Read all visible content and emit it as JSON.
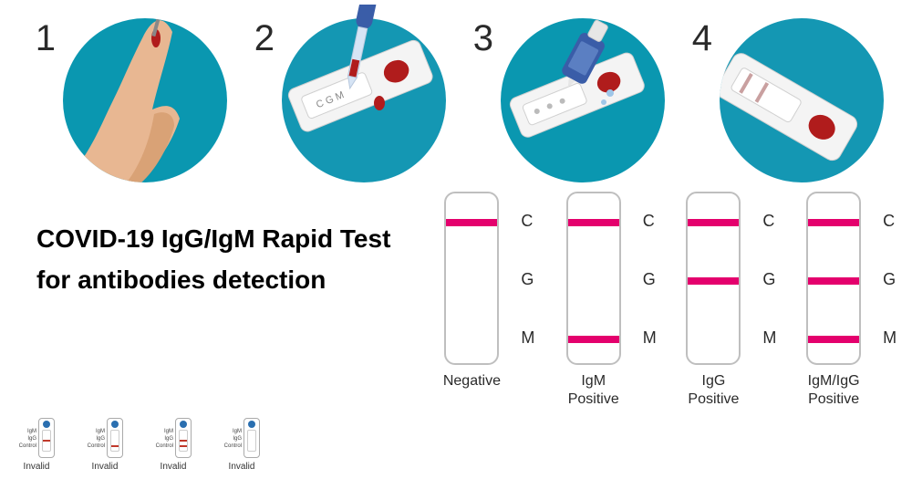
{
  "colors": {
    "circle_bg": "#0a97b0",
    "circle_bg_alt": "#1497b3",
    "band": "#e4006d",
    "step_text": "#2a2a2a",
    "title_text": "#000000",
    "strip_border": "#bfbfbf",
    "skin": "#e8b792",
    "skin_dark": "#d9a276",
    "blood": "#b01c1c",
    "pipette_fill": "#d6e4f5",
    "bottle": "#3a5da8",
    "cap": "#e6e6e6",
    "cassette": "#f4f4f4",
    "cassette_edge": "#d0d0d0"
  },
  "steps": [
    {
      "num": "1",
      "desc": "finger-prick"
    },
    {
      "num": "2",
      "desc": "add-blood"
    },
    {
      "num": "3",
      "desc": "add-buffer"
    },
    {
      "num": "4",
      "desc": "read-result"
    }
  ],
  "title": {
    "line1": "COVID-19 IgG/IgM Rapid Test",
    "line2": "for antibodies detection"
  },
  "strip_marks": {
    "C": 28,
    "G": 92,
    "M": 156
  },
  "results": [
    {
      "label": "Negative",
      "bands": [
        "C"
      ]
    },
    {
      "label": "IgM\nPositive",
      "bands": [
        "C",
        "M"
      ]
    },
    {
      "label": "IgG\nPositive",
      "bands": [
        "C",
        "G"
      ]
    },
    {
      "label": "IgM/IgG\nPositive",
      "bands": [
        "C",
        "G",
        "M"
      ]
    }
  ],
  "invalid": {
    "row_labels": [
      "IgM",
      "IgG",
      "Control"
    ],
    "label": "Invalid",
    "items": [
      {
        "bands": [
          "G"
        ]
      },
      {
        "bands": [
          "M"
        ]
      },
      {
        "bands": [
          "G",
          "M"
        ]
      },
      {
        "bands": []
      }
    ],
    "mini_band_pos": {
      "G": 10,
      "M": 16
    }
  }
}
